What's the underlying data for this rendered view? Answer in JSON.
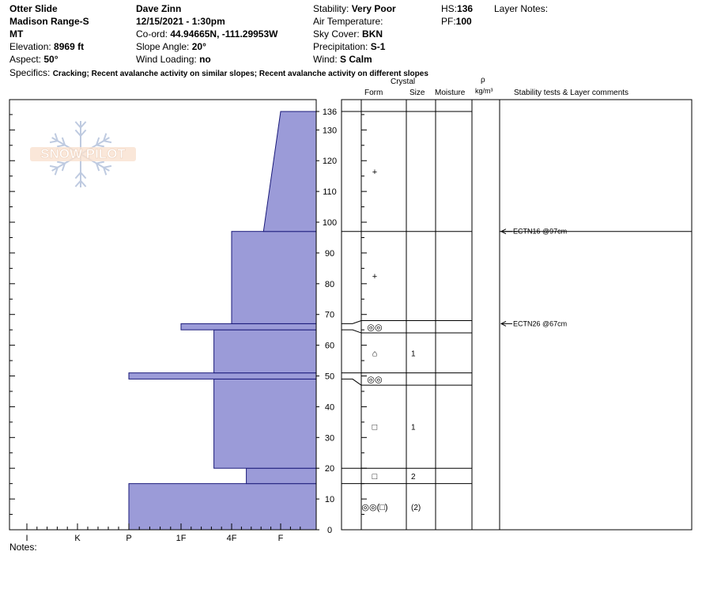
{
  "header": {
    "location": "Otter Slide",
    "range": "Madison Range-S",
    "state": "MT",
    "elevation_label": "Elevation:",
    "elevation_value": "8969 ft",
    "aspect_label": "Aspect:",
    "aspect_value": "50°",
    "observer": "Dave Zinn",
    "datetime": "12/15/2021 - 1:30pm",
    "coord_label": "Co-ord:",
    "coord_value": "44.94665N, -111.29953W",
    "slope_label": "Slope Angle:",
    "slope_value": "20°",
    "wind_loading_label": "Wind Loading:",
    "wind_loading_value": "no",
    "stability_label": "Stability:",
    "stability_value": "Very Poor",
    "air_temp_label": "Air Temperature:",
    "sky_label": "Sky Cover:",
    "sky_value": "BKN",
    "precip_label": "Precipitation:",
    "precip_value": "S-1",
    "wind_label": "Wind:",
    "wind_value": "S Calm",
    "hs_label": "HS:",
    "hs_value": "136",
    "pf_label": "PF:",
    "pf_value": "100",
    "layer_notes_label": "Layer Notes:",
    "specifics_label": "Specifics:",
    "specifics_value": "Cracking; Recent avalanche activity on similar slopes; Recent avalanche activity on different slopes",
    "notes_label": "Notes:"
  },
  "watermark": "SNOW PILOT",
  "columns": {
    "crystal": "Crystal",
    "form": "Form",
    "size": "Size",
    "moisture": "Moisture",
    "rho": "ρ",
    "density_unit": "kg/m³",
    "tests": "Stability tests & Layer comments"
  },
  "colors": {
    "fill": "#9b9bd8",
    "stroke": "#1a1a7a"
  },
  "chart_data": {
    "type": "area",
    "xlabel": "",
    "ylabel": "",
    "x_categories": [
      "I",
      "K",
      "P",
      "1F",
      "4F",
      "F"
    ],
    "y_range": [
      0,
      136
    ],
    "y_ticks": [
      0,
      10,
      20,
      30,
      40,
      50,
      60,
      70,
      80,
      90,
      100,
      110,
      120,
      130,
      136
    ],
    "hardness_profile": [
      {
        "bottom": 0,
        "top": 15,
        "hardness": 2.0
      },
      {
        "bottom": 15,
        "top": 20,
        "hardness": 4.3
      },
      {
        "bottom": 20,
        "top": 49,
        "hardness": 3.65
      },
      {
        "bottom": 49,
        "top": 51,
        "hardness": 2.0
      },
      {
        "bottom": 51,
        "top": 65,
        "hardness": 3.65
      },
      {
        "bottom": 65,
        "top": 67,
        "hardness": 3.0
      },
      {
        "bottom": 67,
        "top": 97,
        "hardness": 4.0
      },
      {
        "bottom": 97,
        "top": 136,
        "hardness_bottom": 4.65,
        "hardness_top": 5.0
      }
    ],
    "layers": [
      {
        "bottom": 0,
        "top": 15,
        "form": "◎◎(□)",
        "size": "(2)"
      },
      {
        "bottom": 15,
        "top": 20,
        "form": "□",
        "size": "2"
      },
      {
        "bottom": 20,
        "top": 47,
        "form": "□",
        "size": "1"
      },
      {
        "bottom": 47,
        "top": 51,
        "form": "◎◎",
        "size": ""
      },
      {
        "bottom": 51,
        "top": 64,
        "form": "⌂",
        "size": "1"
      },
      {
        "bottom": 64,
        "top": 68,
        "form": "◎◎",
        "size": ""
      },
      {
        "bottom": 68,
        "top": 97,
        "form": "+",
        "size": ""
      },
      {
        "bottom": 97,
        "top": 136,
        "form": "+",
        "size": ""
      }
    ],
    "tests": [
      {
        "depth": 97,
        "text": "ECTN16 @97cm"
      },
      {
        "depth": 67,
        "text": "ECTN26 @67cm"
      }
    ]
  }
}
